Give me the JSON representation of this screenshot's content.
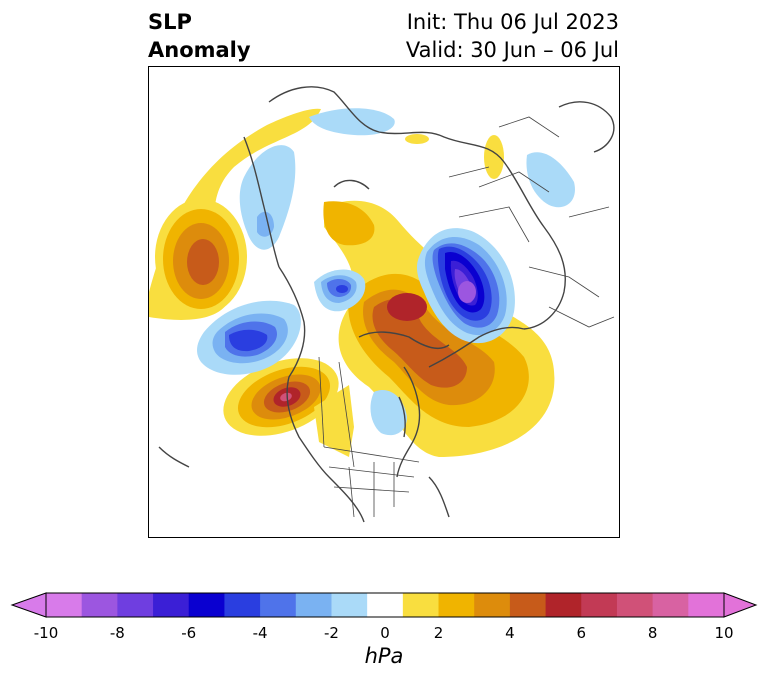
{
  "header": {
    "left_line1": "SLP",
    "left_line2": "Anomaly",
    "right_line1": "Init: Thu 06 Jul 2023",
    "right_line2": "Valid: 30 Jun – 06 Jul"
  },
  "colorbar": {
    "unit": "hPa",
    "tick_labels": [
      "-10",
      "-8",
      "-6",
      "-4",
      "-2",
      "0",
      "2",
      "4",
      "6",
      "8",
      "10"
    ],
    "levels": [
      -10,
      -9,
      -8,
      -7,
      -6,
      -5,
      -4,
      -3,
      -2,
      -1,
      1,
      2,
      3,
      4,
      5,
      6,
      7,
      8,
      9,
      10
    ],
    "colors": [
      "#d87bea",
      "#9c56e0",
      "#6f3ee0",
      "#3b1fd6",
      "#0a00d0",
      "#2a3ee0",
      "#4f73ea",
      "#7ab2f2",
      "#aadaf8",
      "#ffffff",
      "#f9de3f",
      "#f0b400",
      "#dd8c0c",
      "#c75b1a",
      "#b0242a",
      "#c23a55",
      "#d05178",
      "#d862a2",
      "#e272d9"
    ],
    "extend": "both",
    "under_color": "#d87bea",
    "over_color": "#e272d9"
  },
  "map": {
    "projection": "north-polar-stereographic",
    "region": "Northern Hemisphere"
  }
}
